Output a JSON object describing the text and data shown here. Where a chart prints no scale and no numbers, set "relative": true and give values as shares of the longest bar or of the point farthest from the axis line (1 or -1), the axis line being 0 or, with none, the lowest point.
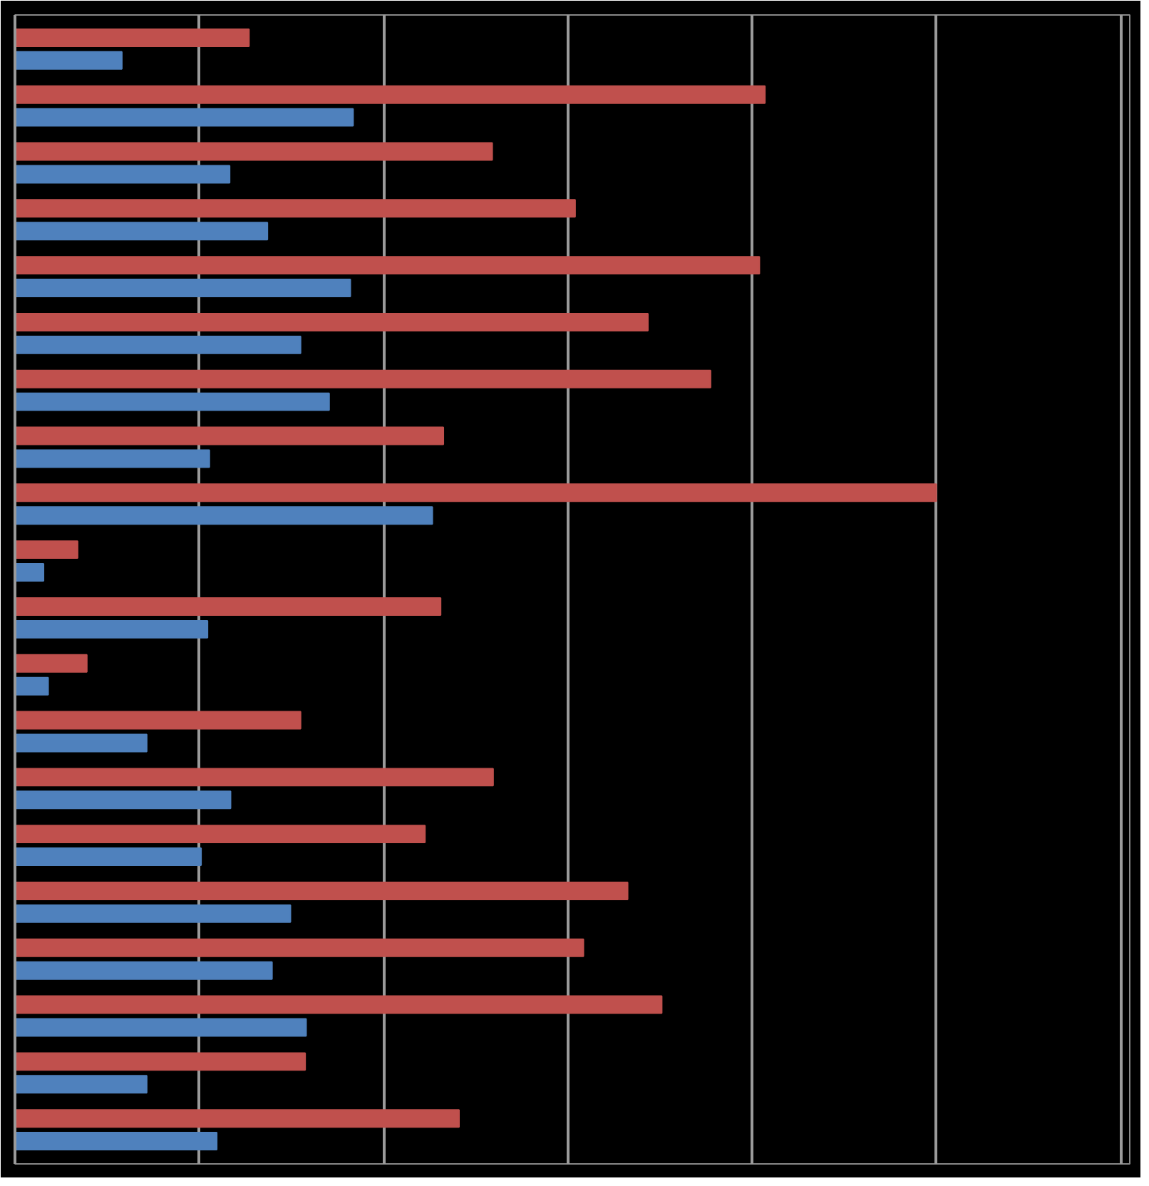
{
  "chart_data": {
    "type": "bar",
    "orientation": "horizontal",
    "relative": true,
    "grid": "x",
    "categories": [
      null,
      null,
      null,
      null,
      null,
      null,
      null,
      null,
      null,
      null,
      null,
      null,
      null,
      null,
      null,
      null,
      null,
      null,
      null,
      null
    ],
    "series": [
      {
        "color": "#c0504d",
        "values": [
          0.254,
          0.814,
          0.518,
          0.608,
          0.808,
          0.687,
          0.755,
          0.465,
          1,
          0.068,
          0.462,
          0.078,
          0.31,
          0.519,
          0.445,
          0.665,
          0.617,
          0.702,
          0.315,
          0.482
        ]
      },
      {
        "color": "#4f81bd",
        "values": [
          0.116,
          0.367,
          0.233,
          0.274,
          0.364,
          0.31,
          0.341,
          0.211,
          0.453,
          0.031,
          0.209,
          0.036,
          0.143,
          0.234,
          0.202,
          0.299,
          0.279,
          0.316,
          0.143,
          0.219
        ]
      }
    ]
  }
}
